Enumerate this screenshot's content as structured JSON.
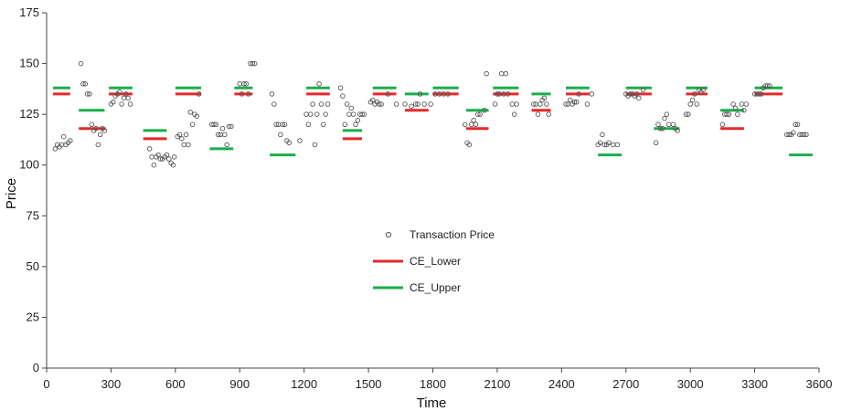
{
  "chart_data": {
    "type": "scatter",
    "xlabel": "Time",
    "ylabel": "Price",
    "xlim": [
      0,
      3600
    ],
    "ylim": [
      0,
      175
    ],
    "x_ticks": [
      0,
      300,
      600,
      900,
      1200,
      1500,
      1800,
      2100,
      2400,
      2700,
      3000,
      3300,
      3600
    ],
    "y_ticks": [
      0,
      25,
      50,
      75,
      100,
      125,
      150,
      175
    ],
    "grid": false,
    "legend_position": "center",
    "series": [
      {
        "name": "Transaction Price",
        "kind": "scatter",
        "color": "#555555",
        "points": [
          [
            40,
            108
          ],
          [
            50,
            110
          ],
          [
            60,
            109
          ],
          [
            70,
            110
          ],
          [
            80,
            114
          ],
          [
            90,
            110
          ],
          [
            100,
            111
          ],
          [
            110,
            112
          ],
          [
            160,
            150
          ],
          [
            170,
            140
          ],
          [
            180,
            140
          ],
          [
            190,
            135
          ],
          [
            200,
            135
          ],
          [
            210,
            120
          ],
          [
            220,
            117
          ],
          [
            230,
            118
          ],
          [
            240,
            110
          ],
          [
            250,
            115
          ],
          [
            260,
            118
          ],
          [
            270,
            117
          ],
          [
            300,
            130
          ],
          [
            310,
            131
          ],
          [
            320,
            134
          ],
          [
            330,
            135
          ],
          [
            340,
            136
          ],
          [
            350,
            130
          ],
          [
            360,
            133
          ],
          [
            370,
            135
          ],
          [
            380,
            133
          ],
          [
            390,
            130
          ],
          [
            480,
            108
          ],
          [
            490,
            104
          ],
          [
            500,
            100
          ],
          [
            510,
            104
          ],
          [
            520,
            105
          ],
          [
            530,
            103
          ],
          [
            540,
            103
          ],
          [
            550,
            104
          ],
          [
            560,
            105
          ],
          [
            570,
            103
          ],
          [
            580,
            101
          ],
          [
            590,
            100
          ],
          [
            595,
            104
          ],
          [
            610,
            114
          ],
          [
            620,
            115
          ],
          [
            630,
            113
          ],
          [
            640,
            110
          ],
          [
            650,
            115
          ],
          [
            660,
            110
          ],
          [
            670,
            126
          ],
          [
            680,
            120
          ],
          [
            690,
            125
          ],
          [
            700,
            124
          ],
          [
            710,
            135
          ],
          [
            770,
            120
          ],
          [
            780,
            120
          ],
          [
            790,
            120
          ],
          [
            800,
            115
          ],
          [
            810,
            115
          ],
          [
            820,
            118
          ],
          [
            830,
            115
          ],
          [
            840,
            110
          ],
          [
            850,
            119
          ],
          [
            860,
            119
          ],
          [
            900,
            140
          ],
          [
            910,
            135
          ],
          [
            920,
            140
          ],
          [
            930,
            140
          ],
          [
            940,
            135
          ],
          [
            950,
            150
          ],
          [
            960,
            150
          ],
          [
            970,
            150
          ],
          [
            1050,
            135
          ],
          [
            1060,
            130
          ],
          [
            1070,
            120
          ],
          [
            1080,
            120
          ],
          [
            1090,
            115
          ],
          [
            1100,
            120
          ],
          [
            1110,
            120
          ],
          [
            1120,
            112
          ],
          [
            1130,
            111
          ],
          [
            1180,
            112
          ],
          [
            1210,
            125
          ],
          [
            1220,
            120
          ],
          [
            1230,
            125
          ],
          [
            1240,
            130
          ],
          [
            1250,
            110
          ],
          [
            1260,
            125
          ],
          [
            1270,
            140
          ],
          [
            1280,
            130
          ],
          [
            1290,
            120
          ],
          [
            1300,
            125
          ],
          [
            1310,
            130
          ],
          [
            1370,
            138
          ],
          [
            1380,
            134
          ],
          [
            1390,
            120
          ],
          [
            1400,
            130
          ],
          [
            1410,
            125
          ],
          [
            1420,
            128
          ],
          [
            1430,
            125
          ],
          [
            1440,
            120
          ],
          [
            1450,
            122
          ],
          [
            1460,
            125
          ],
          [
            1470,
            125
          ],
          [
            1480,
            125
          ],
          [
            1510,
            131
          ],
          [
            1520,
            132
          ],
          [
            1530,
            130
          ],
          [
            1540,
            131
          ],
          [
            1550,
            130
          ],
          [
            1560,
            130
          ],
          [
            1590,
            135
          ],
          [
            1630,
            130
          ],
          [
            1670,
            130
          ],
          [
            1700,
            129
          ],
          [
            1720,
            130
          ],
          [
            1730,
            130
          ],
          [
            1740,
            135
          ],
          [
            1760,
            130
          ],
          [
            1790,
            130
          ],
          [
            1810,
            135
          ],
          [
            1830,
            135
          ],
          [
            1850,
            135
          ],
          [
            1870,
            135
          ],
          [
            1950,
            120
          ],
          [
            1960,
            111
          ],
          [
            1970,
            110
          ],
          [
            1980,
            120
          ],
          [
            1990,
            122
          ],
          [
            2000,
            120
          ],
          [
            2010,
            125
          ],
          [
            2020,
            125
          ],
          [
            2040,
            127
          ],
          [
            2050,
            145
          ],
          [
            2090,
            130
          ],
          [
            2100,
            135
          ],
          [
            2110,
            135
          ],
          [
            2120,
            145
          ],
          [
            2130,
            135
          ],
          [
            2140,
            145
          ],
          [
            2150,
            135
          ],
          [
            2170,
            130
          ],
          [
            2180,
            125
          ],
          [
            2190,
            130
          ],
          [
            2270,
            130
          ],
          [
            2280,
            130
          ],
          [
            2290,
            125
          ],
          [
            2300,
            130
          ],
          [
            2310,
            132
          ],
          [
            2320,
            133
          ],
          [
            2330,
            130
          ],
          [
            2340,
            125
          ],
          [
            2420,
            130
          ],
          [
            2430,
            130
          ],
          [
            2440,
            132
          ],
          [
            2450,
            130
          ],
          [
            2460,
            131
          ],
          [
            2470,
            131
          ],
          [
            2480,
            135
          ],
          [
            2520,
            130
          ],
          [
            2540,
            135
          ],
          [
            2570,
            110
          ],
          [
            2580,
            111
          ],
          [
            2590,
            115
          ],
          [
            2600,
            110
          ],
          [
            2610,
            110
          ],
          [
            2620,
            111
          ],
          [
            2640,
            110
          ],
          [
            2660,
            110
          ],
          [
            2700,
            135
          ],
          [
            2710,
            134
          ],
          [
            2720,
            135
          ],
          [
            2730,
            135
          ],
          [
            2740,
            134
          ],
          [
            2750,
            135
          ],
          [
            2760,
            133
          ],
          [
            2780,
            137
          ],
          [
            2840,
            111
          ],
          [
            2850,
            120
          ],
          [
            2860,
            118
          ],
          [
            2870,
            118
          ],
          [
            2880,
            123
          ],
          [
            2890,
            125
          ],
          [
            2900,
            120
          ],
          [
            2920,
            120
          ],
          [
            2930,
            118
          ],
          [
            2940,
            117
          ],
          [
            2980,
            125
          ],
          [
            2990,
            125
          ],
          [
            3000,
            130
          ],
          [
            3010,
            132
          ],
          [
            3020,
            135
          ],
          [
            3030,
            130
          ],
          [
            3040,
            137
          ],
          [
            3050,
            136
          ],
          [
            3060,
            137
          ],
          [
            3150,
            120
          ],
          [
            3160,
            125
          ],
          [
            3170,
            125
          ],
          [
            3180,
            125
          ],
          [
            3200,
            130
          ],
          [
            3210,
            128
          ],
          [
            3220,
            125
          ],
          [
            3240,
            130
          ],
          [
            3250,
            127
          ],
          [
            3260,
            130
          ],
          [
            3300,
            135
          ],
          [
            3310,
            135
          ],
          [
            3320,
            135
          ],
          [
            3330,
            135
          ],
          [
            3340,
            138
          ],
          [
            3350,
            139
          ],
          [
            3360,
            139
          ],
          [
            3370,
            139
          ],
          [
            3450,
            115
          ],
          [
            3460,
            115
          ],
          [
            3470,
            115
          ],
          [
            3480,
            116
          ],
          [
            3490,
            120
          ],
          [
            3500,
            120
          ],
          [
            3510,
            115
          ],
          [
            3520,
            115
          ],
          [
            3530,
            115
          ],
          [
            3540,
            115
          ]
        ]
      },
      {
        "name": "CE_Lower",
        "kind": "segments",
        "color": "#e8272a",
        "segments": [
          [
            30,
            110,
            135
          ],
          [
            150,
            275,
            118
          ],
          [
            290,
            400,
            135
          ],
          [
            450,
            560,
            113
          ],
          [
            600,
            720,
            135
          ],
          [
            875,
            960,
            135
          ],
          [
            1210,
            1320,
            135
          ],
          [
            1380,
            1470,
            113
          ],
          [
            1520,
            1630,
            135
          ],
          [
            1670,
            1780,
            127
          ],
          [
            1800,
            1920,
            135
          ],
          [
            1955,
            2060,
            118
          ],
          [
            2080,
            2200,
            135
          ],
          [
            2260,
            2350,
            127
          ],
          [
            2420,
            2530,
            135
          ],
          [
            2700,
            2820,
            135
          ],
          [
            2980,
            3080,
            135
          ],
          [
            3140,
            3250,
            118
          ],
          [
            3300,
            3430,
            135
          ]
        ]
      },
      {
        "name": "CE_Upper",
        "kind": "segments",
        "color": "#1aae4a",
        "segments": [
          [
            30,
            110,
            138
          ],
          [
            150,
            270,
            127
          ],
          [
            290,
            400,
            138
          ],
          [
            450,
            560,
            117
          ],
          [
            600,
            720,
            138
          ],
          [
            760,
            870,
            108
          ],
          [
            875,
            960,
            138
          ],
          [
            1040,
            1160,
            105
          ],
          [
            1210,
            1320,
            138
          ],
          [
            1380,
            1470,
            117
          ],
          [
            1520,
            1630,
            138
          ],
          [
            1670,
            1780,
            135
          ],
          [
            1800,
            1920,
            138
          ],
          [
            1955,
            2060,
            127
          ],
          [
            2080,
            2200,
            138
          ],
          [
            2260,
            2350,
            135
          ],
          [
            2420,
            2530,
            138
          ],
          [
            2570,
            2680,
            105
          ],
          [
            2700,
            2820,
            138
          ],
          [
            2830,
            2950,
            118
          ],
          [
            2980,
            3080,
            138
          ],
          [
            3140,
            3250,
            127
          ],
          [
            3300,
            3430,
            138
          ],
          [
            3460,
            3570,
            105
          ]
        ]
      }
    ]
  }
}
